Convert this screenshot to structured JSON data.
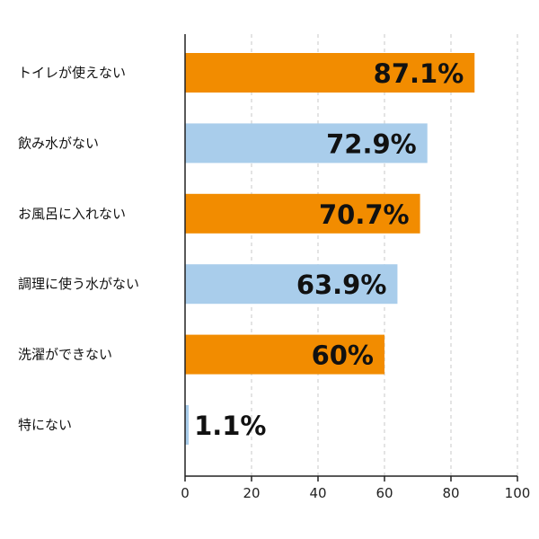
{
  "chart_data": {
    "type": "bar",
    "orientation": "horizontal",
    "categories": [
      "トイレが使えない",
      "飲み水がない",
      "お風呂に入れない",
      "調理に使う水がない",
      "洗濯ができない",
      "特にない"
    ],
    "values": [
      87.1,
      72.9,
      70.7,
      63.9,
      60,
      1.1
    ],
    "value_labels": [
      "87.1%",
      "72.9%",
      "70.7%",
      "63.9%",
      "60%",
      "1.1%"
    ],
    "xlim": [
      0,
      100
    ],
    "x_ticks": [
      0,
      20,
      40,
      60,
      80,
      100
    ],
    "grid": true,
    "legend": "none",
    "bar_colors": [
      "#f28c00",
      "#a9cdeb",
      "#f28c00",
      "#a9cdeb",
      "#f28c00",
      "#a9cdeb"
    ],
    "colors": {
      "orange": "#f28c00",
      "light_blue": "#a9cdeb",
      "axis": "#222222",
      "grid": "#c8c8c8"
    }
  }
}
